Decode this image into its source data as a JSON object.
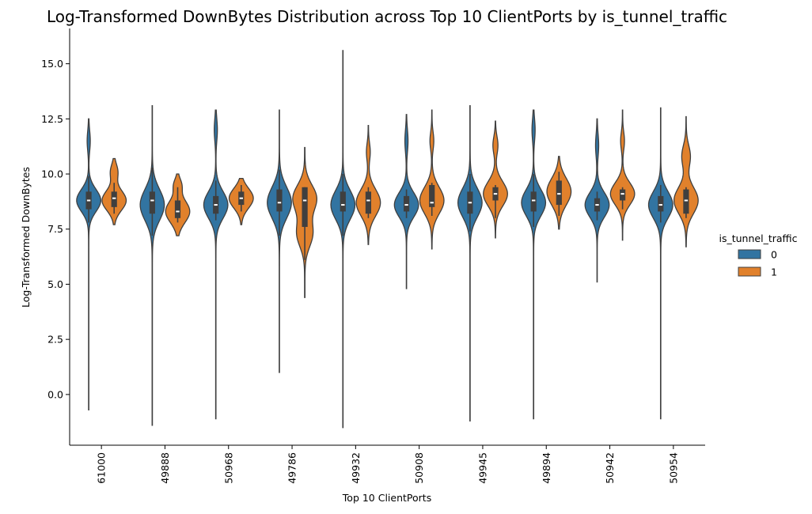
{
  "chart_data": {
    "type": "violin",
    "title": "Log-Transformed DownBytes Distribution across Top 10 ClientPorts by is_tunnel_traffic",
    "xlabel": "Top 10 ClientPorts",
    "ylabel": "Log-Transformed DownBytes",
    "ylim": [
      -2.3,
      16.6
    ],
    "yticks": [
      0.0,
      2.5,
      5.0,
      7.5,
      10.0,
      12.5,
      15.0
    ],
    "ytick_labels": [
      "0.0",
      "2.5",
      "5.0",
      "7.5",
      "10.0",
      "12.5",
      "15.0"
    ],
    "categories": [
      "61000",
      "49888",
      "50968",
      "49786",
      "49932",
      "50908",
      "49945",
      "49894",
      "50942",
      "50954"
    ],
    "legend": {
      "title": "is_tunnel_traffic",
      "placement": "right",
      "entries": [
        {
          "label": "0",
          "color": "#3274a1"
        },
        {
          "label": "1",
          "color": "#e1812c"
        }
      ]
    },
    "series": [
      {
        "name": "0",
        "color": "#3274a1",
        "violins": [
          {
            "min": -0.7,
            "max": 12.5,
            "q1": 8.4,
            "median": 8.8,
            "q3": 9.2,
            "whisker_low": 7.8,
            "whisker_high": 9.9,
            "modes": [
              {
                "c": 8.8,
                "w": 1.0,
                "s": 0.5
              },
              {
                "c": 11.5,
                "w": 0.12,
                "s": 0.45
              }
            ]
          },
          {
            "min": -1.4,
            "max": 13.1,
            "q1": 8.2,
            "median": 8.8,
            "q3": 9.2,
            "whisker_low": 7.2,
            "whisker_high": 10.3,
            "modes": [
              {
                "c": 8.6,
                "w": 1.0,
                "s": 0.7
              }
            ]
          },
          {
            "min": -1.1,
            "max": 12.9,
            "q1": 8.2,
            "median": 8.6,
            "q3": 9.0,
            "whisker_low": 7.9,
            "whisker_high": 9.7,
            "modes": [
              {
                "c": 8.6,
                "w": 1.0,
                "s": 0.6
              },
              {
                "c": 12.0,
                "w": 0.12,
                "s": 0.5
              }
            ]
          },
          {
            "min": 1.0,
            "max": 12.9,
            "q1": 8.3,
            "median": 8.7,
            "q3": 9.3,
            "whisker_low": 7.2,
            "whisker_high": 10.2,
            "modes": [
              {
                "c": 8.7,
                "w": 1.0,
                "s": 0.7
              }
            ]
          },
          {
            "min": -1.5,
            "max": 15.6,
            "q1": 8.3,
            "median": 8.6,
            "q3": 9.2,
            "whisker_low": 7.2,
            "whisker_high": 10.0,
            "modes": [
              {
                "c": 8.6,
                "w": 1.0,
                "s": 0.65
              }
            ]
          },
          {
            "min": 4.8,
            "max": 12.7,
            "q1": 8.3,
            "median": 8.6,
            "q3": 9.0,
            "whisker_low": 8.0,
            "whisker_high": 9.3,
            "modes": [
              {
                "c": 8.6,
                "w": 1.0,
                "s": 0.55
              },
              {
                "c": 11.5,
                "w": 0.12,
                "s": 0.5
              }
            ]
          },
          {
            "min": -1.2,
            "max": 13.1,
            "q1": 8.2,
            "median": 8.7,
            "q3": 9.2,
            "whisker_low": 7.4,
            "whisker_high": 10.0,
            "modes": [
              {
                "c": 8.7,
                "w": 1.0,
                "s": 0.65
              }
            ]
          },
          {
            "min": -1.1,
            "max": 12.9,
            "q1": 8.3,
            "median": 8.8,
            "q3": 9.2,
            "whisker_low": 7.6,
            "whisker_high": 10.0,
            "modes": [
              {
                "c": 8.7,
                "w": 1.0,
                "s": 0.6
              },
              {
                "c": 12.0,
                "w": 0.12,
                "s": 0.5
              }
            ]
          },
          {
            "min": 5.1,
            "max": 12.5,
            "q1": 8.3,
            "median": 8.6,
            "q3": 8.9,
            "whisker_low": 7.9,
            "whisker_high": 9.2,
            "modes": [
              {
                "c": 8.6,
                "w": 1.0,
                "s": 0.55
              },
              {
                "c": 11.3,
                "w": 0.12,
                "s": 0.5
              }
            ]
          },
          {
            "min": -1.1,
            "max": 13.0,
            "q1": 8.3,
            "median": 8.6,
            "q3": 9.0,
            "whisker_low": 7.8,
            "whisker_high": 9.5,
            "modes": [
              {
                "c": 8.6,
                "w": 1.0,
                "s": 0.6
              }
            ]
          }
        ]
      },
      {
        "name": "1",
        "color": "#e1812c",
        "violins": [
          {
            "min": 7.7,
            "max": 10.7,
            "q1": 8.5,
            "median": 8.9,
            "q3": 9.2,
            "whisker_low": 8.2,
            "whisker_high": 9.6,
            "modes": [
              {
                "c": 8.8,
                "w": 1.0,
                "s": 0.45
              },
              {
                "c": 10.1,
                "w": 0.3,
                "s": 0.35
              }
            ]
          },
          {
            "min": 7.2,
            "max": 10.0,
            "q1": 8.0,
            "median": 8.3,
            "q3": 8.8,
            "whisker_low": 7.8,
            "whisker_high": 9.4,
            "modes": [
              {
                "c": 8.3,
                "w": 1.0,
                "s": 0.5
              },
              {
                "c": 9.5,
                "w": 0.3,
                "s": 0.3
              }
            ]
          },
          {
            "min": 7.7,
            "max": 9.8,
            "q1": 8.6,
            "median": 8.9,
            "q3": 9.2,
            "whisker_low": 8.3,
            "whisker_high": 9.5,
            "modes": [
              {
                "c": 8.9,
                "w": 1.0,
                "s": 0.45
              }
            ]
          },
          {
            "min": 4.4,
            "max": 11.2,
            "q1": 7.6,
            "median": 8.8,
            "q3": 9.4,
            "whisker_low": 6.1,
            "whisker_high": 9.4,
            "modes": [
              {
                "c": 8.9,
                "w": 0.75,
                "s": 0.6
              },
              {
                "c": 7.3,
                "w": 0.5,
                "s": 0.6
              }
            ]
          },
          {
            "min": 6.8,
            "max": 12.2,
            "q1": 8.2,
            "median": 8.8,
            "q3": 9.2,
            "whisker_low": 8.0,
            "whisker_high": 9.4,
            "modes": [
              {
                "c": 8.7,
                "w": 1.0,
                "s": 0.6
              },
              {
                "c": 11.0,
                "w": 0.15,
                "s": 0.4
              }
            ]
          },
          {
            "min": 6.6,
            "max": 12.9,
            "q1": 8.5,
            "median": 8.7,
            "q3": 9.5,
            "whisker_low": 8.1,
            "whisker_high": 9.6,
            "modes": [
              {
                "c": 8.8,
                "w": 1.0,
                "s": 0.6
              },
              {
                "c": 11.5,
                "w": 0.15,
                "s": 0.4
              }
            ]
          },
          {
            "min": 7.1,
            "max": 12.4,
            "q1": 8.8,
            "median": 9.1,
            "q3": 9.4,
            "whisker_low": 8.0,
            "whisker_high": 9.5,
            "modes": [
              {
                "c": 9.1,
                "w": 1.0,
                "s": 0.55
              },
              {
                "c": 11.3,
                "w": 0.2,
                "s": 0.4
              }
            ]
          },
          {
            "min": 7.5,
            "max": 10.8,
            "q1": 8.6,
            "median": 9.1,
            "q3": 9.7,
            "whisker_low": 8.1,
            "whisker_high": 10.1,
            "modes": [
              {
                "c": 9.2,
                "w": 1.0,
                "s": 0.6
              }
            ]
          },
          {
            "min": 7.0,
            "max": 12.9,
            "q1": 8.8,
            "median": 9.1,
            "q3": 9.3,
            "whisker_low": 8.4,
            "whisker_high": 9.4,
            "modes": [
              {
                "c": 9.1,
                "w": 1.0,
                "s": 0.5
              },
              {
                "c": 11.5,
                "w": 0.15,
                "s": 0.4
              }
            ]
          },
          {
            "min": 6.7,
            "max": 12.6,
            "q1": 8.2,
            "median": 8.8,
            "q3": 9.3,
            "whisker_low": 8.0,
            "whisker_high": 9.4,
            "modes": [
              {
                "c": 8.8,
                "w": 1.0,
                "s": 0.6
              },
              {
                "c": 10.8,
                "w": 0.35,
                "s": 0.5
              }
            ]
          }
        ]
      }
    ]
  }
}
